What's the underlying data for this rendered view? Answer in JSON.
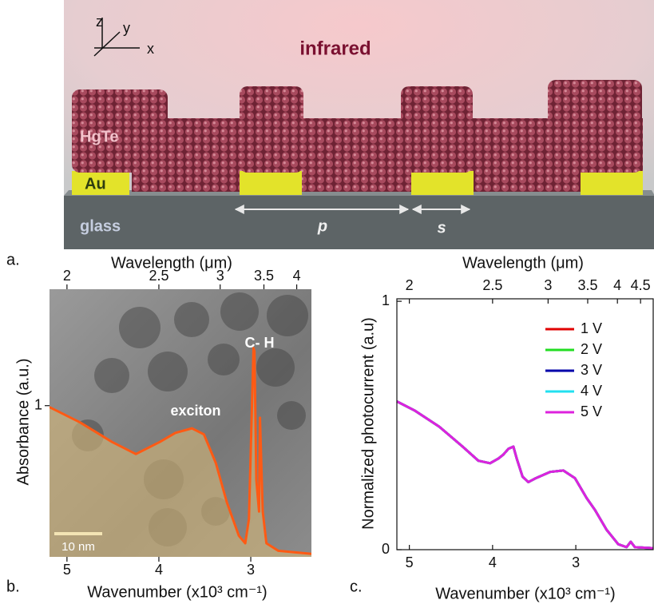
{
  "panel_a": {
    "label": "a.",
    "light": "infrared",
    "axes": [
      "z",
      "y",
      "x"
    ],
    "layers": [
      "HgTe",
      "Au",
      "glass"
    ],
    "dimensions": [
      "p",
      "s"
    ]
  },
  "chart_data": [
    {
      "type": "area",
      "panel_label": "b.",
      "x_label": "Wavenumber (x10³ cm⁻¹)",
      "x2_label": "Wavelength (μm)",
      "y_label": "Absorbance (a.u.)",
      "annotations": [
        "exciton",
        "C- H"
      ],
      "scale_bar": "10 nm",
      "x": [
        5.19,
        4.86,
        4.51,
        4.25,
        3.99,
        3.82,
        3.64,
        3.51,
        3.38,
        3.26,
        3.13,
        3.06,
        3.02,
        2.97,
        2.96,
        2.94,
        2.91,
        2.9,
        2.87,
        2.83,
        2.7,
        2.34
      ],
      "values": [
        0.99,
        0.89,
        0.76,
        0.68,
        0.76,
        0.82,
        0.85,
        0.81,
        0.62,
        0.36,
        0.14,
        0.09,
        0.25,
        1.38,
        1.36,
        0.51,
        0.3,
        0.92,
        0.3,
        0.09,
        0.04,
        0.02
      ],
      "color": "#ff5a14",
      "fill": "#d4b679",
      "xlim": [
        5.19,
        2.34
      ],
      "xticks": [
        5,
        4,
        3
      ],
      "x2ticks": [
        {
          "value": 5,
          "label": "2"
        },
        {
          "value": 4,
          "label": "2.5"
        },
        {
          "value": 3.333,
          "label": "3"
        },
        {
          "value": 2.857,
          "label": "3.5"
        },
        {
          "value": 2.5,
          "label": "4"
        }
      ],
      "ylim": [
        0,
        1.77
      ],
      "yticks": [
        1
      ]
    },
    {
      "type": "line",
      "panel_label": "c.",
      "x_label": "Wavenumber (x10³ cm⁻¹)",
      "x2_label": "Wavelength (μm)",
      "y_label": "Normalized photocurrent (a.u)",
      "x": [
        5.15,
        4.93,
        4.64,
        4.36,
        4.17,
        4.03,
        3.93,
        3.87,
        3.81,
        3.75,
        3.71,
        3.64,
        3.57,
        3.48,
        3.31,
        3.15,
        3.01,
        2.87,
        2.77,
        2.63,
        2.49,
        2.39,
        2.34,
        2.29,
        2.07
      ],
      "series": [
        {
          "name": "1 V",
          "color": "#e00000",
          "values": [
            0.597,
            0.559,
            0.495,
            0.415,
            0.358,
            0.348,
            0.367,
            0.383,
            0.406,
            0.415,
            0.367,
            0.294,
            0.272,
            0.288,
            0.313,
            0.319,
            0.288,
            0.208,
            0.16,
            0.08,
            0.022,
            0.01,
            0.032,
            0.01,
            0.006
          ]
        },
        {
          "name": "2 V",
          "color": "#22dd22",
          "values": [
            0.597,
            0.559,
            0.495,
            0.415,
            0.358,
            0.348,
            0.367,
            0.383,
            0.406,
            0.415,
            0.367,
            0.294,
            0.272,
            0.288,
            0.313,
            0.319,
            0.288,
            0.208,
            0.16,
            0.08,
            0.022,
            0.01,
            0.032,
            0.01,
            0.006
          ]
        },
        {
          "name": "3 V",
          "color": "#0000aa",
          "values": [
            0.597,
            0.559,
            0.495,
            0.415,
            0.358,
            0.348,
            0.367,
            0.383,
            0.406,
            0.415,
            0.367,
            0.294,
            0.272,
            0.288,
            0.313,
            0.319,
            0.288,
            0.208,
            0.16,
            0.08,
            0.022,
            0.01,
            0.032,
            0.01,
            0.006
          ]
        },
        {
          "name": "4 V",
          "color": "#22e0f0",
          "values": [
            0.597,
            0.559,
            0.495,
            0.415,
            0.358,
            0.348,
            0.367,
            0.383,
            0.406,
            0.415,
            0.367,
            0.294,
            0.272,
            0.288,
            0.313,
            0.319,
            0.288,
            0.208,
            0.16,
            0.08,
            0.022,
            0.01,
            0.032,
            0.01,
            0.006
          ]
        },
        {
          "name": "5 V",
          "color": "#dd22dd",
          "values": [
            0.597,
            0.559,
            0.495,
            0.415,
            0.358,
            0.348,
            0.367,
            0.383,
            0.406,
            0.415,
            0.367,
            0.294,
            0.272,
            0.288,
            0.313,
            0.319,
            0.288,
            0.208,
            0.16,
            0.08,
            0.022,
            0.01,
            0.032,
            0.01,
            0.006
          ]
        }
      ],
      "xlim": [
        5.15,
        2.07
      ],
      "xticks": [
        5,
        4,
        3
      ],
      "x2ticks": [
        {
          "value": 5,
          "label": "2"
        },
        {
          "value": 4,
          "label": "2.5"
        },
        {
          "value": 3.333,
          "label": "3"
        },
        {
          "value": 2.857,
          "label": "3.5"
        },
        {
          "value": 2.5,
          "label": "4"
        },
        {
          "value": 2.222,
          "label": "4.5"
        }
      ],
      "ylim": [
        0,
        1.01
      ],
      "yticks": [
        0,
        1
      ],
      "legend": "upper right"
    }
  ]
}
